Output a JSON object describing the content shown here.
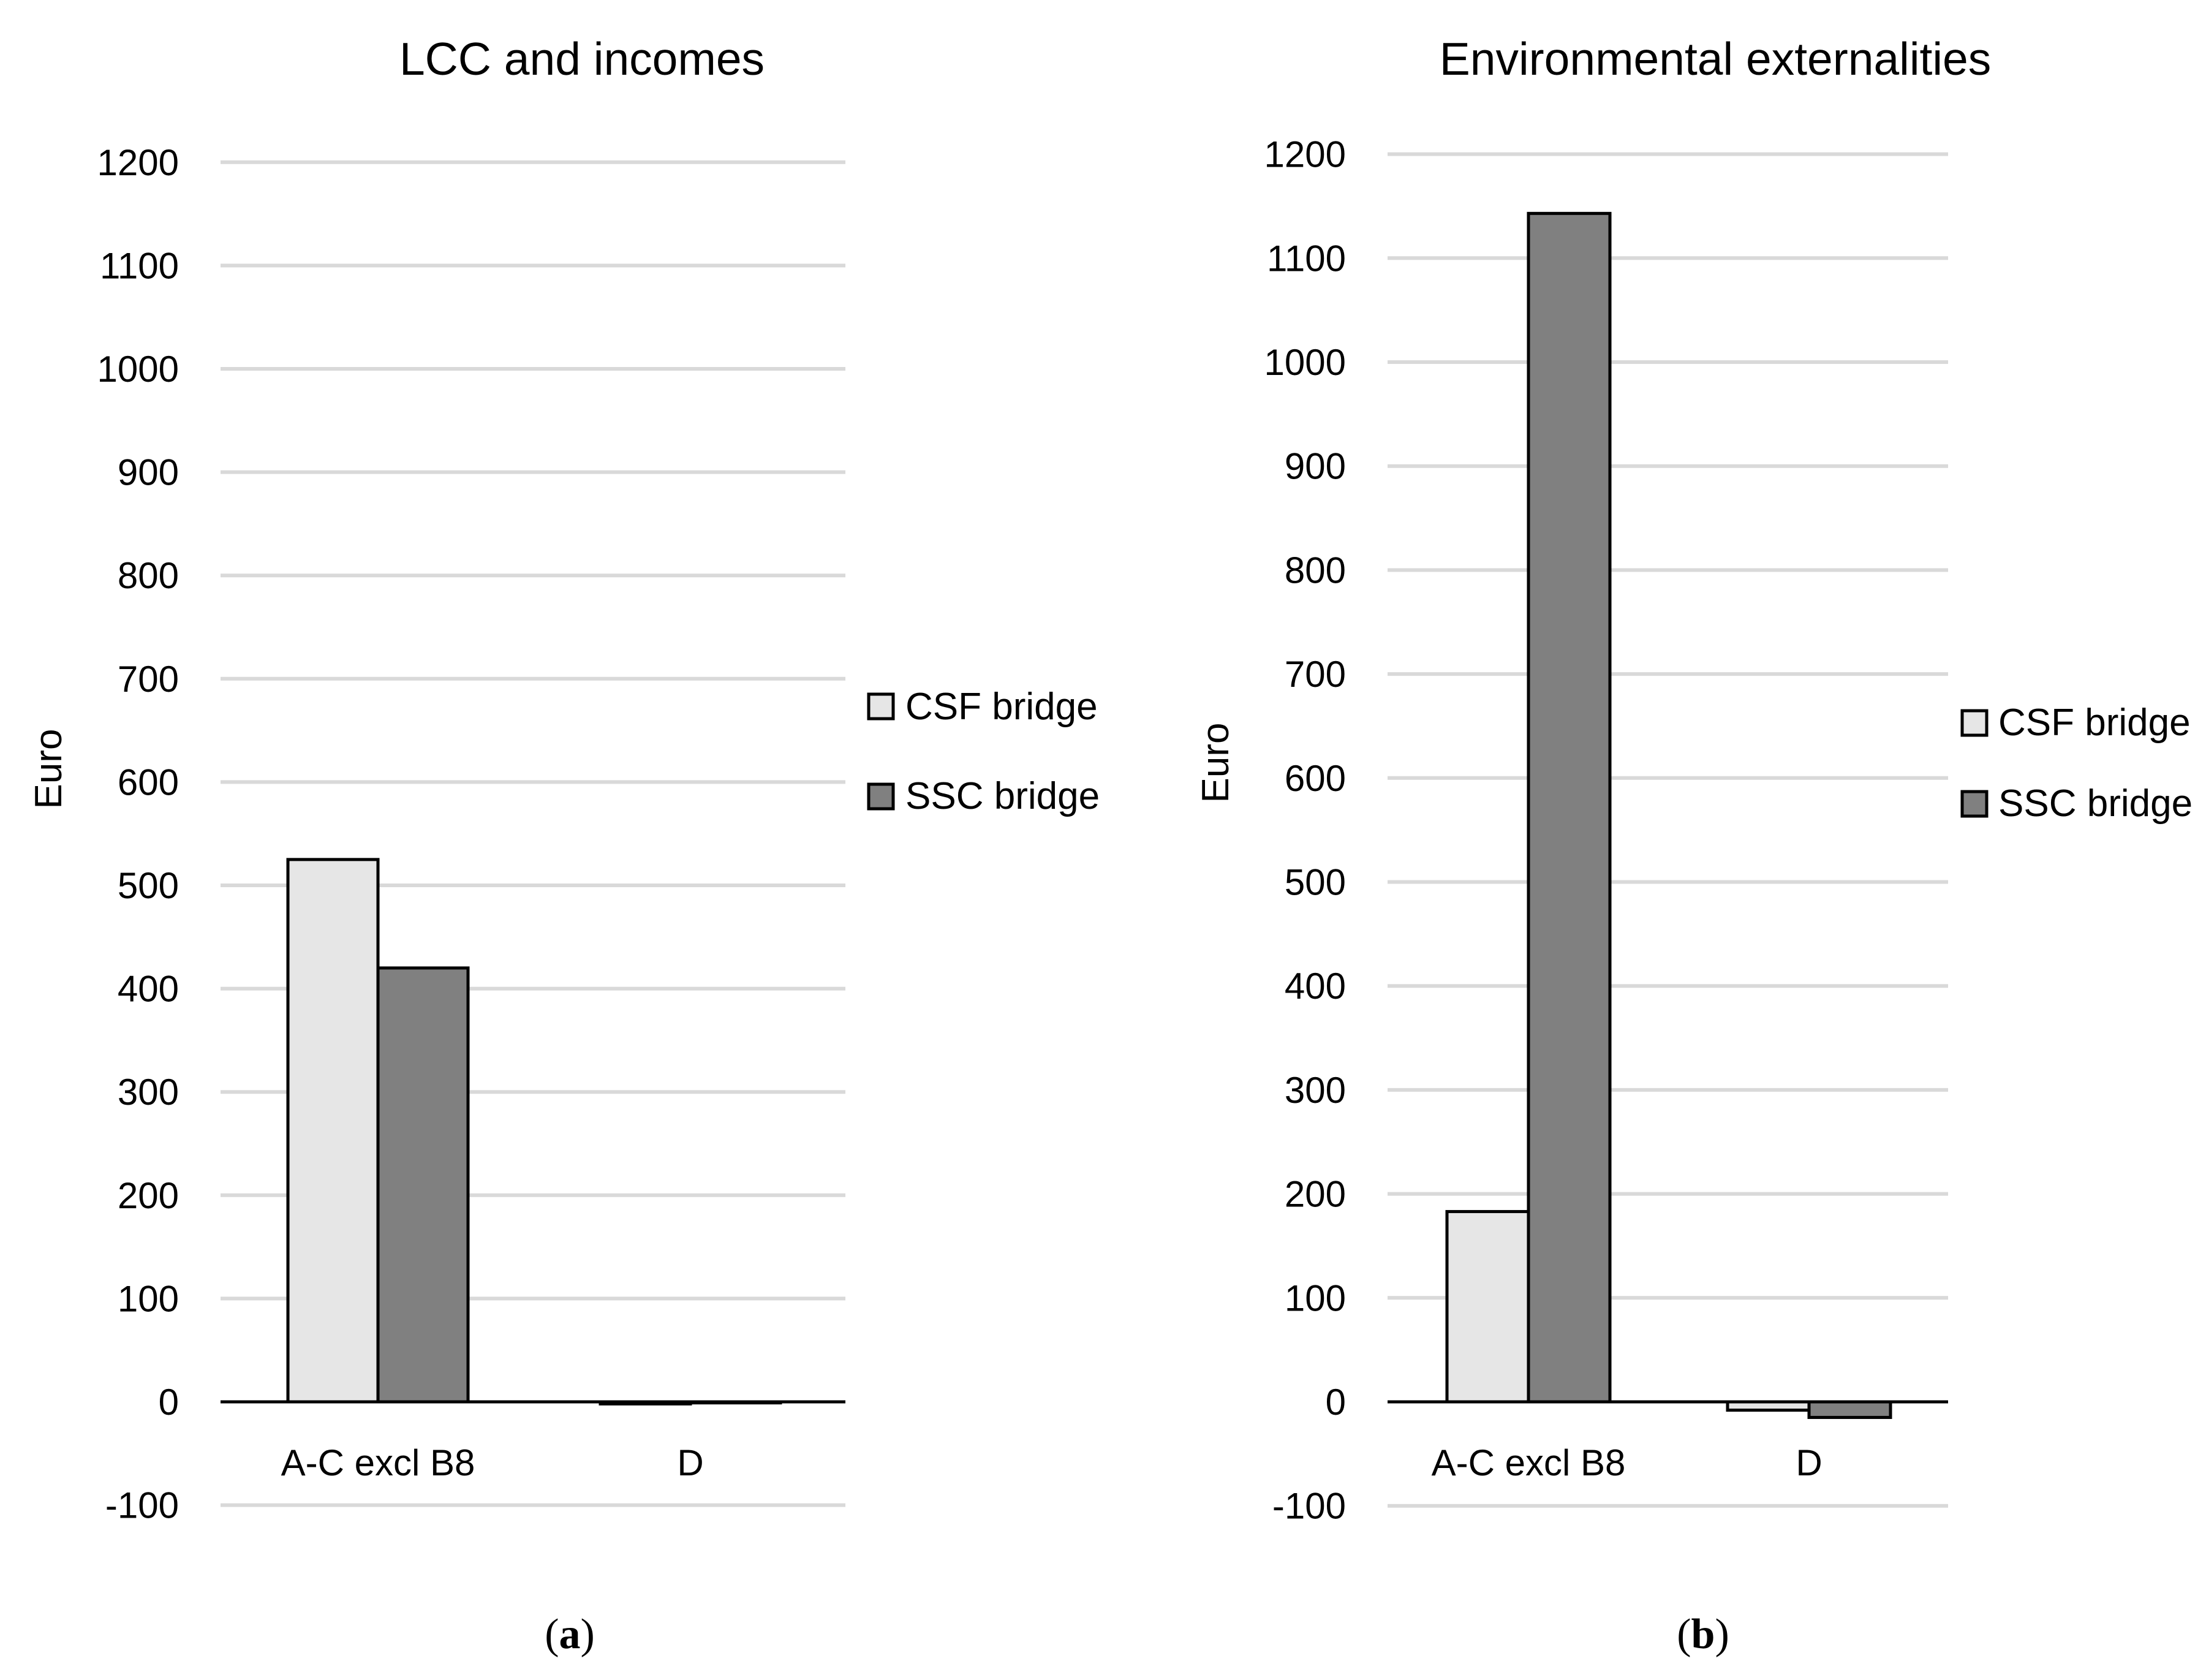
{
  "colors": {
    "csf": "#e6e6e6",
    "ssc": "#808080",
    "edge": "#000000",
    "grid": "#d9d9d9"
  },
  "chart_data": [
    {
      "type": "bar",
      "title": "LCC and incomes",
      "ylabel": "Euro",
      "xlabel": "",
      "categories": [
        "A-C excl B8",
        "D"
      ],
      "series": [
        {
          "name": "CSF bridge",
          "values": [
            525,
            -2
          ]
        },
        {
          "name": "SSC bridge",
          "values": [
            420,
            -1
          ]
        }
      ],
      "ylim": [
        -100,
        1200
      ],
      "yticks": [
        "1200",
        "1100",
        "1000",
        "900",
        "800",
        "700",
        "600",
        "500",
        "400",
        "300",
        "200",
        "100",
        "0",
        "-100"
      ],
      "grid": true,
      "legend": "right",
      "caption": {
        "open": "(",
        "letter": "a",
        "close": ")"
      }
    },
    {
      "type": "bar",
      "title": "Environmental externalities",
      "ylabel": "Euro",
      "xlabel": "",
      "categories": [
        "A-C excl B8",
        "D"
      ],
      "series": [
        {
          "name": "CSF bridge",
          "values": [
            183,
            -8
          ]
        },
        {
          "name": "SSC bridge",
          "values": [
            1143,
            -15
          ]
        }
      ],
      "ylim": [
        -100,
        1200
      ],
      "yticks": [
        "1200",
        "1100",
        "1000",
        "900",
        "800",
        "700",
        "600",
        "500",
        "400",
        "300",
        "200",
        "100",
        "0",
        "-100"
      ],
      "grid": true,
      "legend": "right",
      "caption": {
        "open": "(",
        "letter": "b",
        "close": ")"
      }
    }
  ]
}
